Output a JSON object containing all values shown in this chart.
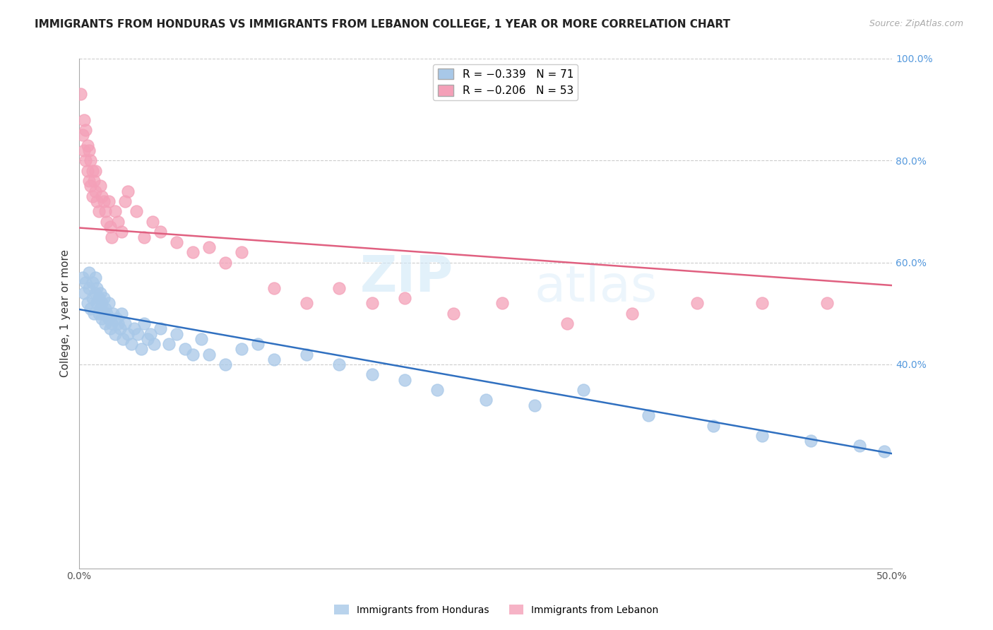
{
  "title": "IMMIGRANTS FROM HONDURAS VS IMMIGRANTS FROM LEBANON COLLEGE, 1 YEAR OR MORE CORRELATION CHART",
  "source": "Source: ZipAtlas.com",
  "ylabel": "College, 1 year or more",
  "R_honduras": -0.339,
  "N_honduras": 71,
  "R_lebanon": -0.206,
  "N_lebanon": 53,
  "blue_color": "#a8c8e8",
  "pink_color": "#f4a0b8",
  "blue_line_color": "#3070c0",
  "pink_line_color": "#e06080",
  "xlim": [
    0.0,
    0.5
  ],
  "ylim": [
    0.0,
    1.0
  ],
  "grid_color": "#cccccc",
  "background_color": "#ffffff",
  "right_axis_color": "#5599dd",
  "title_fontsize": 11,
  "honduras_x": [
    0.002,
    0.003,
    0.004,
    0.005,
    0.006,
    0.006,
    0.007,
    0.008,
    0.008,
    0.009,
    0.01,
    0.01,
    0.011,
    0.011,
    0.012,
    0.012,
    0.013,
    0.013,
    0.014,
    0.014,
    0.015,
    0.015,
    0.016,
    0.016,
    0.017,
    0.018,
    0.018,
    0.019,
    0.02,
    0.021,
    0.022,
    0.023,
    0.024,
    0.025,
    0.026,
    0.027,
    0.028,
    0.03,
    0.032,
    0.034,
    0.036,
    0.038,
    0.04,
    0.042,
    0.044,
    0.046,
    0.05,
    0.055,
    0.06,
    0.065,
    0.07,
    0.075,
    0.08,
    0.09,
    0.1,
    0.11,
    0.12,
    0.14,
    0.16,
    0.18,
    0.2,
    0.22,
    0.25,
    0.28,
    0.31,
    0.35,
    0.39,
    0.42,
    0.45,
    0.48,
    0.495
  ],
  "honduras_y": [
    0.57,
    0.54,
    0.56,
    0.52,
    0.55,
    0.58,
    0.51,
    0.53,
    0.56,
    0.5,
    0.54,
    0.57,
    0.52,
    0.55,
    0.5,
    0.53,
    0.51,
    0.54,
    0.49,
    0.52,
    0.5,
    0.53,
    0.48,
    0.51,
    0.5,
    0.49,
    0.52,
    0.47,
    0.48,
    0.5,
    0.46,
    0.49,
    0.48,
    0.47,
    0.5,
    0.45,
    0.48,
    0.46,
    0.44,
    0.47,
    0.46,
    0.43,
    0.48,
    0.45,
    0.46,
    0.44,
    0.47,
    0.44,
    0.46,
    0.43,
    0.42,
    0.45,
    0.42,
    0.4,
    0.43,
    0.44,
    0.41,
    0.42,
    0.4,
    0.38,
    0.37,
    0.35,
    0.33,
    0.32,
    0.35,
    0.3,
    0.28,
    0.26,
    0.25,
    0.24,
    0.23
  ],
  "lebanon_x": [
    0.001,
    0.002,
    0.003,
    0.003,
    0.004,
    0.004,
    0.005,
    0.005,
    0.006,
    0.006,
    0.007,
    0.007,
    0.008,
    0.008,
    0.009,
    0.01,
    0.01,
    0.011,
    0.012,
    0.013,
    0.014,
    0.015,
    0.016,
    0.017,
    0.018,
    0.019,
    0.02,
    0.022,
    0.024,
    0.026,
    0.028,
    0.03,
    0.035,
    0.04,
    0.045,
    0.05,
    0.06,
    0.07,
    0.08,
    0.09,
    0.1,
    0.12,
    0.14,
    0.16,
    0.18,
    0.2,
    0.23,
    0.26,
    0.3,
    0.34,
    0.38,
    0.42,
    0.46
  ],
  "lebanon_y": [
    0.93,
    0.85,
    0.88,
    0.82,
    0.86,
    0.8,
    0.83,
    0.78,
    0.82,
    0.76,
    0.8,
    0.75,
    0.78,
    0.73,
    0.76,
    0.74,
    0.78,
    0.72,
    0.7,
    0.75,
    0.73,
    0.72,
    0.7,
    0.68,
    0.72,
    0.67,
    0.65,
    0.7,
    0.68,
    0.66,
    0.72,
    0.74,
    0.7,
    0.65,
    0.68,
    0.66,
    0.64,
    0.62,
    0.63,
    0.6,
    0.62,
    0.55,
    0.52,
    0.55,
    0.52,
    0.53,
    0.5,
    0.52,
    0.48,
    0.5,
    0.52,
    0.52,
    0.52
  ],
  "blue_intercept": 0.508,
  "blue_slope": -0.566,
  "pink_intercept": 0.668,
  "pink_slope": -0.226
}
